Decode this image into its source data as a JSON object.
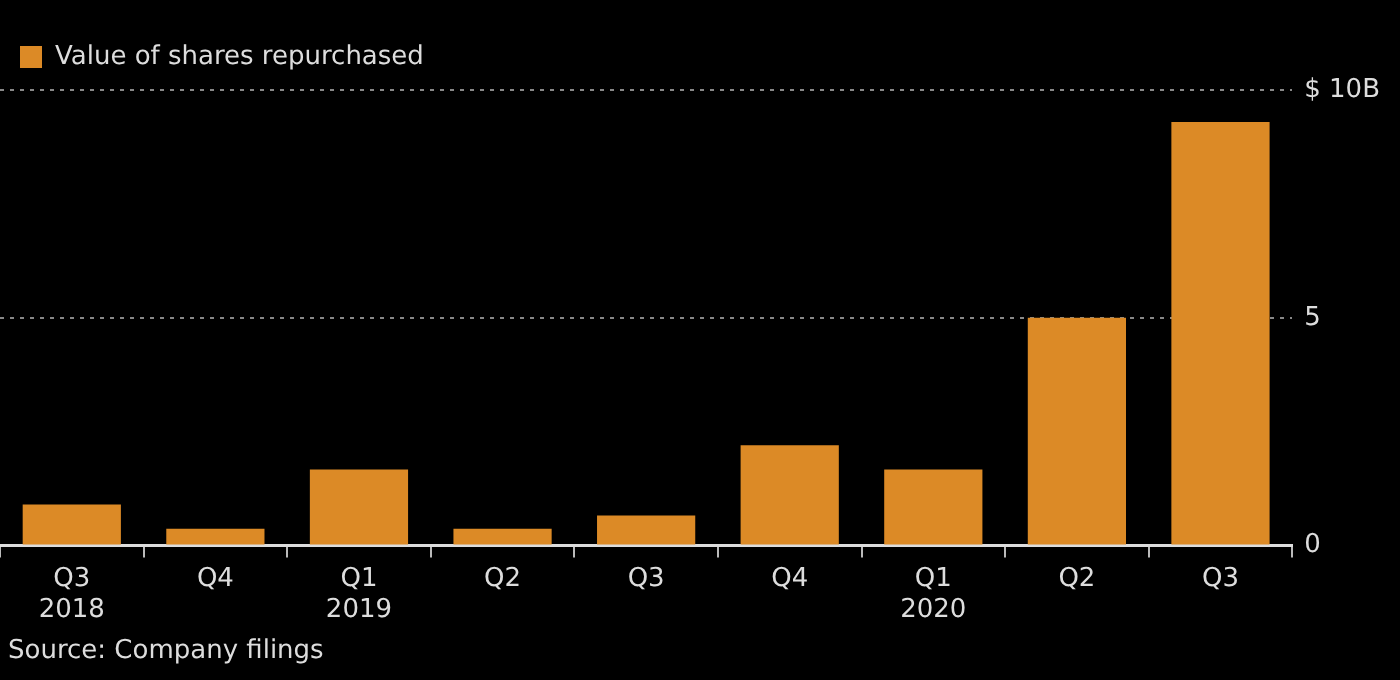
{
  "chart_data": {
    "type": "bar",
    "categories": [
      "Q3 2018",
      "Q4",
      "Q1 2019",
      "Q2",
      "Q3",
      "Q4",
      "Q1 2020",
      "Q2",
      "Q3"
    ],
    "series": [
      {
        "name": "Value of shares repurchased",
        "color": "#dc8a26",
        "values": [
          0.9,
          0.37,
          1.67,
          0.37,
          0.66,
          2.2,
          1.67,
          5.0,
          9.3
        ]
      }
    ],
    "ylim": [
      0,
      10
    ],
    "yticks": [
      0,
      5,
      {
        "value": 10,
        "label": "$ 10B"
      }
    ],
    "grid": "y",
    "legend": "top left",
    "annotations": [
      "Source: Company filings"
    ]
  }
}
